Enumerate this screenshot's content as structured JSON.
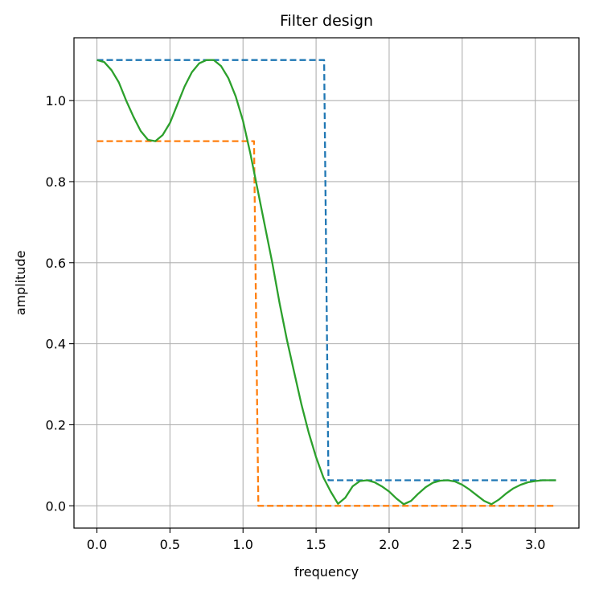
{
  "chart_data": {
    "type": "line",
    "title": "Filter design",
    "xlabel": "frequency",
    "ylabel": "amplitude",
    "xlim": [
      -0.157,
      3.299
    ],
    "ylim": [
      -0.055,
      1.155
    ],
    "xticks": [
      0.0,
      0.5,
      1.0,
      1.5,
      2.0,
      2.5,
      3.0
    ],
    "xtick_labels": [
      "0.0",
      "0.5",
      "1.0",
      "1.5",
      "2.0",
      "2.5",
      "3.0"
    ],
    "yticks": [
      0.0,
      0.2,
      0.4,
      0.6,
      0.8,
      1.0
    ],
    "ytick_labels": [
      "0.0",
      "0.2",
      "0.4",
      "0.6",
      "0.8",
      "1.0"
    ],
    "grid": true,
    "series": [
      {
        "color": "#1f77b4",
        "style": "dashed",
        "x": [
          0.0,
          1.555,
          1.585,
          3.142
        ],
        "y": [
          1.1,
          1.1,
          0.063,
          0.063
        ]
      },
      {
        "color": "#ff7f0e",
        "style": "dashed",
        "x": [
          0.0,
          1.075,
          1.105,
          3.142
        ],
        "y": [
          0.9,
          0.9,
          0.0,
          0.0
        ]
      },
      {
        "color": "#2ca02c",
        "style": "solid",
        "x": [
          0.0,
          0.05,
          0.1,
          0.15,
          0.2,
          0.25,
          0.3,
          0.35,
          0.4,
          0.45,
          0.5,
          0.55,
          0.6,
          0.65,
          0.7,
          0.75,
          0.8,
          0.85,
          0.9,
          0.95,
          1.0,
          1.05,
          1.1,
          1.15,
          1.2,
          1.25,
          1.3,
          1.35,
          1.4,
          1.45,
          1.5,
          1.55,
          1.6,
          1.65,
          1.7,
          1.75,
          1.8,
          1.85,
          1.9,
          1.95,
          2.0,
          2.05,
          2.1,
          2.15,
          2.2,
          2.25,
          2.3,
          2.35,
          2.4,
          2.45,
          2.5,
          2.55,
          2.6,
          2.65,
          2.7,
          2.75,
          2.8,
          2.85,
          2.9,
          2.95,
          3.0,
          3.05,
          3.1,
          3.142
        ],
        "y": [
          1.1,
          1.095,
          1.075,
          1.045,
          1.0,
          0.96,
          0.925,
          0.903,
          0.9,
          0.915,
          0.945,
          0.99,
          1.035,
          1.07,
          1.092,
          1.1,
          1.1,
          1.085,
          1.055,
          1.01,
          0.95,
          0.87,
          0.78,
          0.69,
          0.6,
          0.5,
          0.41,
          0.33,
          0.25,
          0.18,
          0.12,
          0.07,
          0.035,
          0.005,
          0.02,
          0.048,
          0.061,
          0.063,
          0.058,
          0.048,
          0.035,
          0.018,
          0.004,
          0.012,
          0.03,
          0.046,
          0.057,
          0.062,
          0.063,
          0.06,
          0.052,
          0.04,
          0.026,
          0.012,
          0.004,
          0.015,
          0.03,
          0.043,
          0.052,
          0.058,
          0.061,
          0.063,
          0.063,
          0.063
        ]
      }
    ]
  }
}
